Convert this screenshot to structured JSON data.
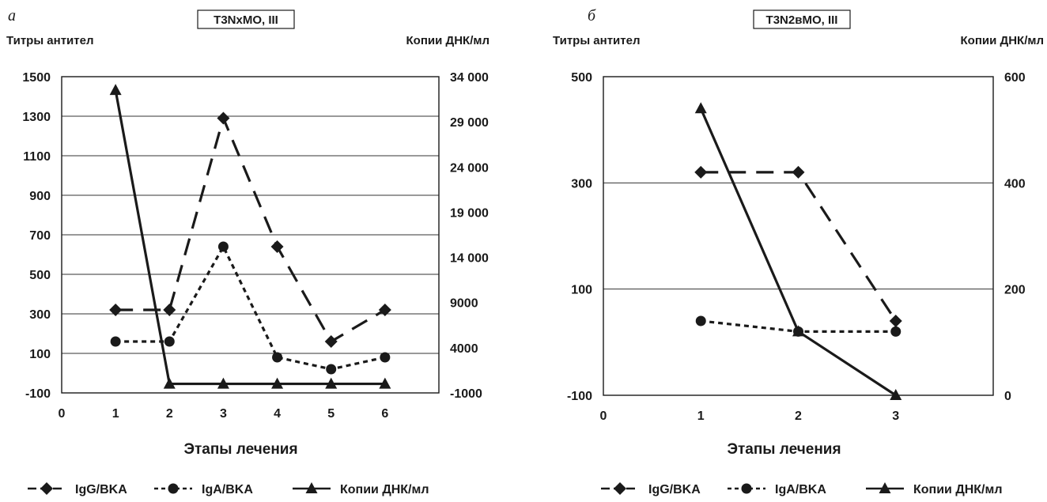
{
  "chart_data": [
    {
      "type": "line",
      "panel": "а",
      "title": "T3NxMO, III",
      "ylabel_left": "Титры антител",
      "ylabel_right": "Копии ДНК/мл",
      "xlabel": "Этапы лечения",
      "x_ticks": [
        "0",
        "1",
        "2",
        "3",
        "4",
        "5",
        "6"
      ],
      "xlim": [
        0,
        7
      ],
      "ylim_left": [
        -100,
        1500
      ],
      "y_ticks_left": [
        "-100",
        "100",
        "300",
        "500",
        "700",
        "900",
        "1100",
        "1300",
        "1500"
      ],
      "ylim_right": [
        -1000,
        34000
      ],
      "y_ticks_right": [
        "-1000",
        "4000",
        "9000",
        "14 000",
        "19 000",
        "24 000",
        "29 000",
        "34 000"
      ],
      "grid": "horizontal",
      "legend_position": "bottom",
      "series": [
        {
          "name": "IgG/BKA",
          "axis": "left",
          "style": "dashed",
          "marker": "diamond",
          "x": [
            1,
            2,
            3,
            4,
            5,
            6
          ],
          "y": [
            320,
            320,
            1290,
            640,
            160,
            320
          ]
        },
        {
          "name": "IgA/BKA",
          "axis": "left",
          "style": "dotted",
          "marker": "circle",
          "x": [
            1,
            2,
            3,
            4,
            5,
            6
          ],
          "y": [
            160,
            160,
            640,
            80,
            20,
            80
          ]
        },
        {
          "name": "Копии ДНК/мл",
          "axis": "right",
          "style": "solid",
          "marker": "triangle",
          "x": [
            1,
            2,
            3,
            4,
            5,
            6
          ],
          "y": [
            32500,
            0,
            0,
            0,
            0,
            0
          ]
        }
      ]
    },
    {
      "type": "line",
      "panel": "б",
      "title": "T3N2вMO, III",
      "ylabel_left": "Титры антител",
      "ylabel_right": "Копии ДНК/мл",
      "xlabel": "Этапы лечения",
      "x_ticks": [
        "0",
        "1",
        "2",
        "3"
      ],
      "xlim": [
        0,
        4
      ],
      "ylim_left": [
        -100,
        500
      ],
      "y_ticks_left": [
        "-100",
        "100",
        "300",
        "500"
      ],
      "ylim_right": [
        0,
        600
      ],
      "y_ticks_right": [
        "0",
        "200",
        "400",
        "600"
      ],
      "grid": "horizontal",
      "legend_position": "bottom",
      "series": [
        {
          "name": "IgG/BKA",
          "axis": "left",
          "style": "dashed",
          "marker": "diamond",
          "x": [
            1,
            2,
            3
          ],
          "y": [
            320,
            320,
            40
          ]
        },
        {
          "name": "IgA/BKA",
          "axis": "left",
          "style": "dotted",
          "marker": "circle",
          "x": [
            1,
            2,
            3
          ],
          "y": [
            40,
            20,
            20
          ]
        },
        {
          "name": "Копии ДНК/мл",
          "axis": "right",
          "style": "solid",
          "marker": "triangle",
          "x": [
            1,
            2,
            3
          ],
          "y": [
            540,
            120,
            0
          ]
        }
      ]
    }
  ]
}
